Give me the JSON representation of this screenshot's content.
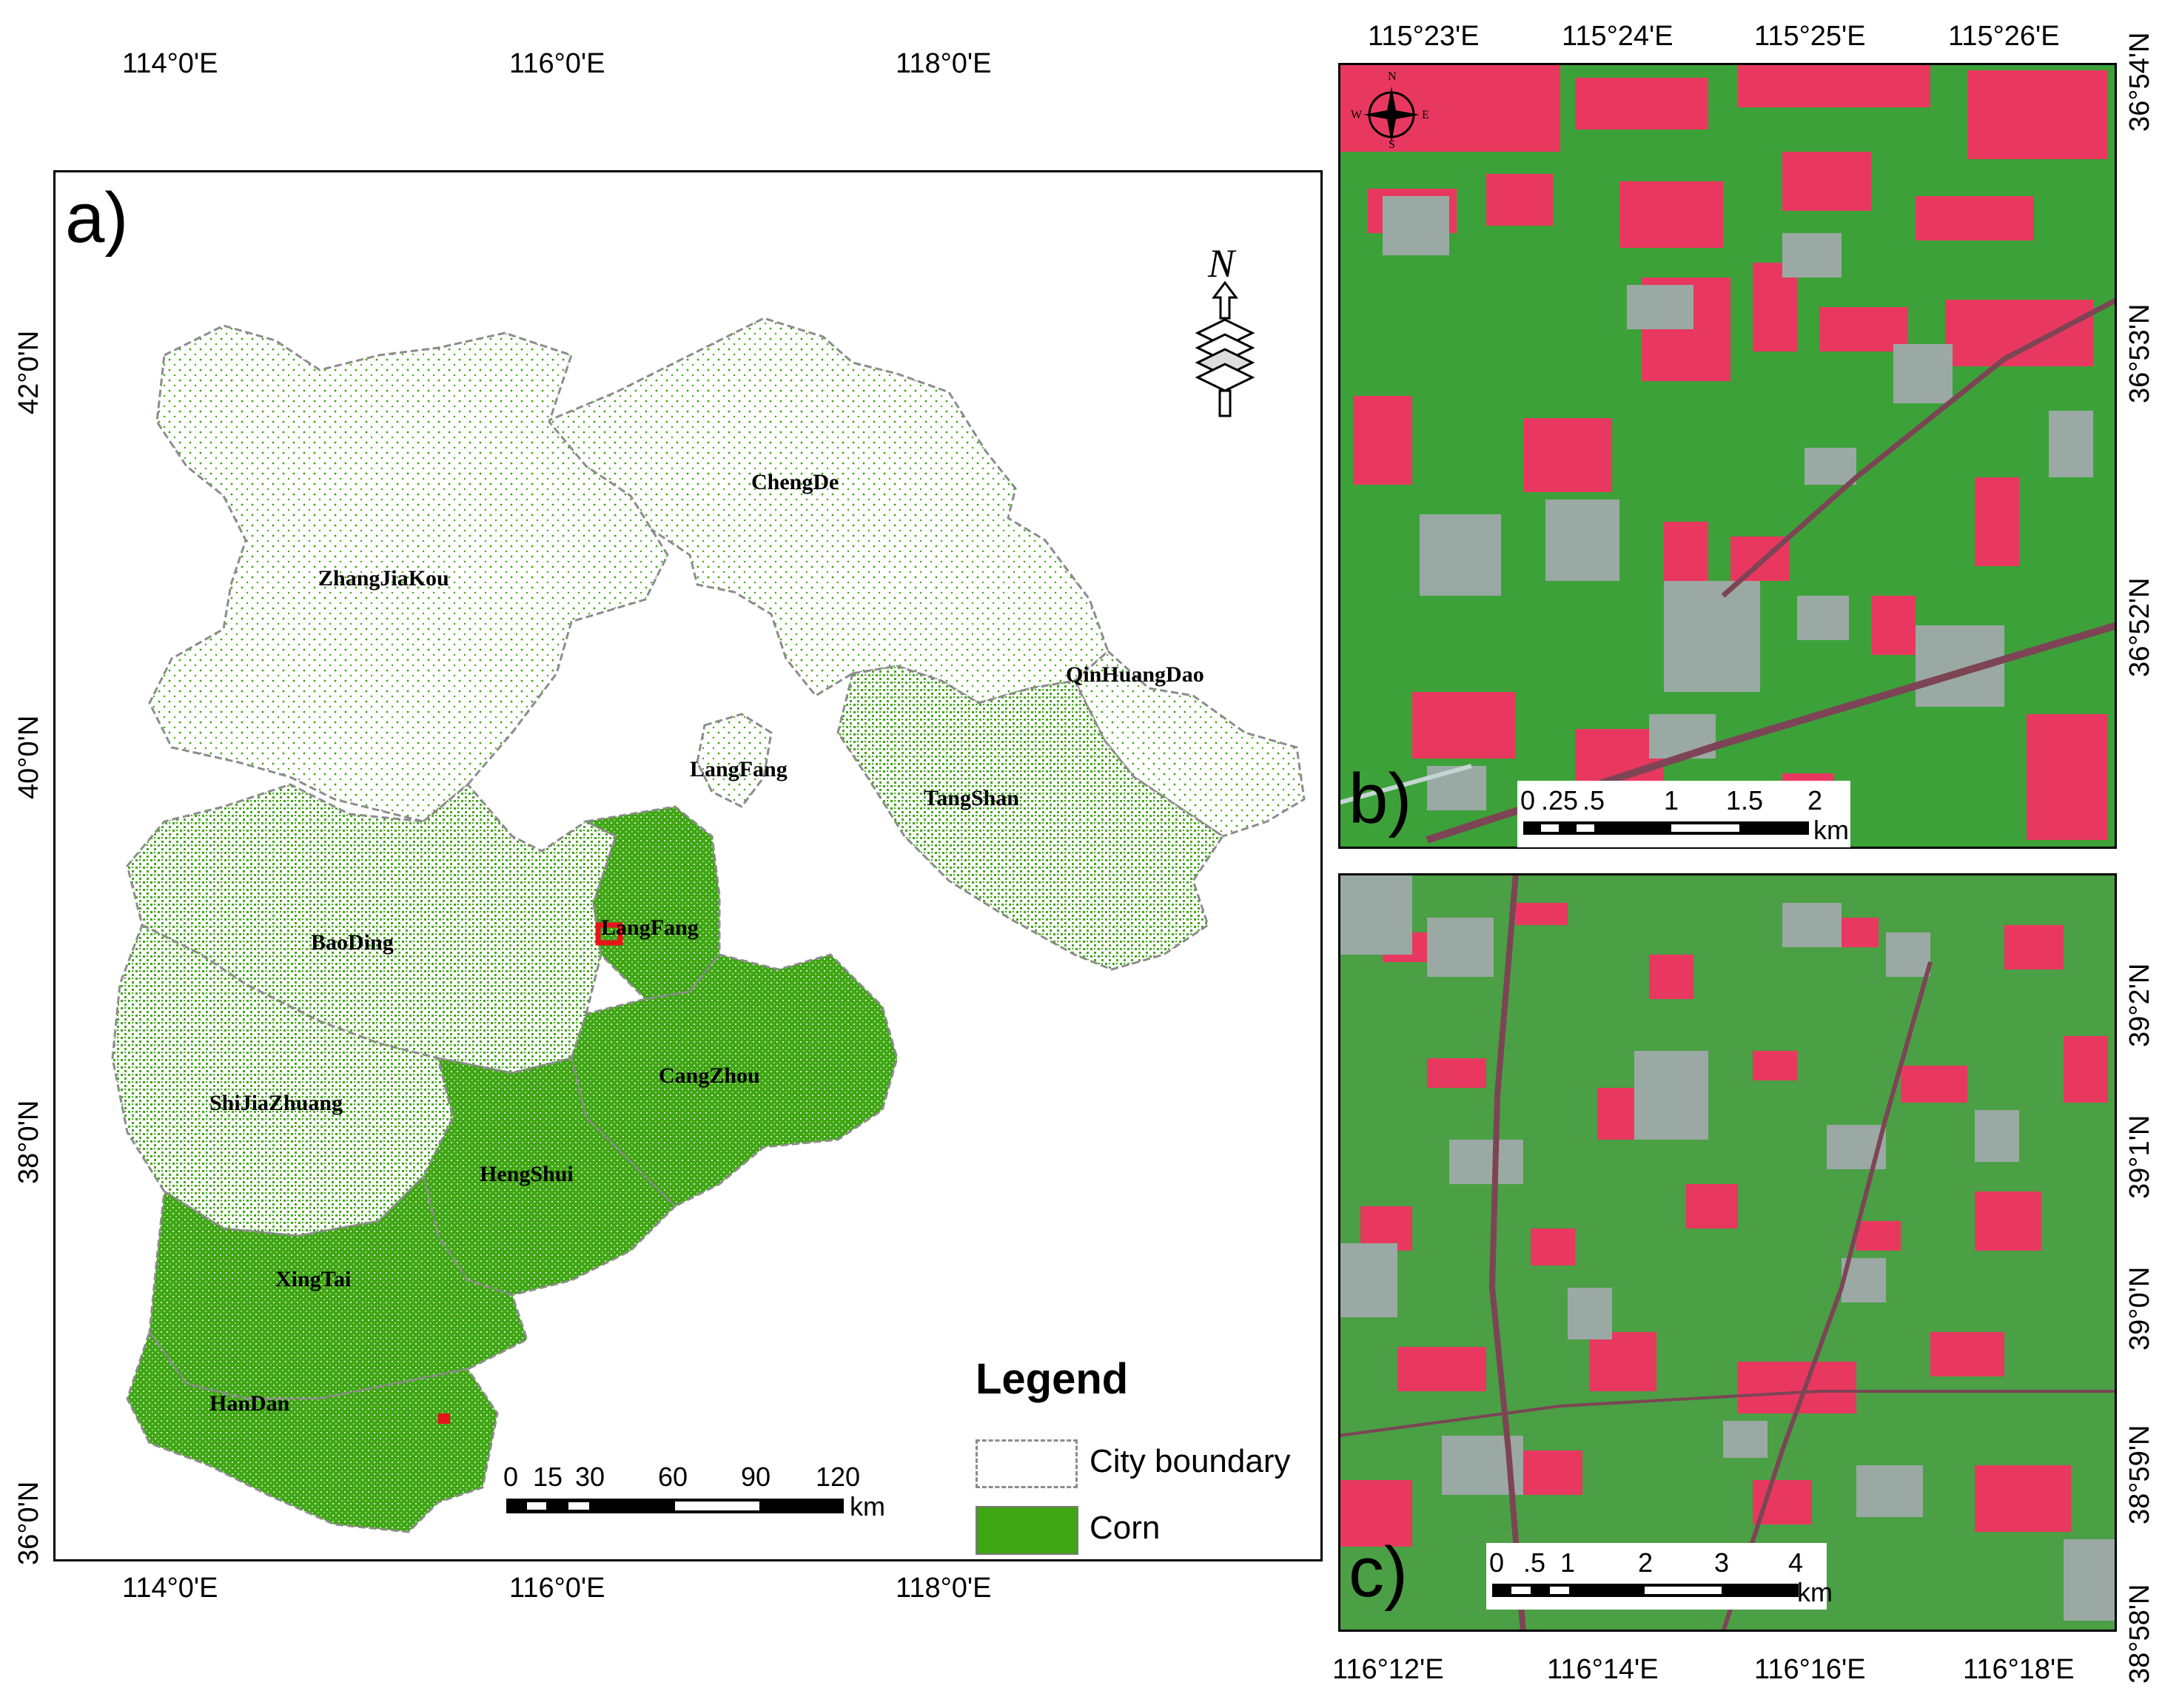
{
  "panel_a": {
    "letter": "a)",
    "lon_labels": [
      "114°0'E",
      "116°0'E",
      "118°0'E"
    ],
    "lat_labels": [
      "42°0'N",
      "40°0'N",
      "38°0'N",
      "36°0'N"
    ],
    "cities": [
      {
        "name": "ChengDe"
      },
      {
        "name": "ZhangJiaKou"
      },
      {
        "name": "QinHuangDao"
      },
      {
        "name": "LangFang"
      },
      {
        "name": "TangShan"
      },
      {
        "name": "LangFang"
      },
      {
        "name": "BaoDing"
      },
      {
        "name": "CangZhou"
      },
      {
        "name": "ShiJiaZhuang"
      },
      {
        "name": "HengShui"
      },
      {
        "name": "XingTai"
      },
      {
        "name": "HanDan"
      }
    ],
    "north_arrow_letter": "N",
    "scalebar": {
      "ticks": [
        "0",
        "15",
        "30",
        "60",
        "90",
        "120"
      ],
      "unit": "km"
    },
    "legend": {
      "title": "Legend",
      "items": [
        {
          "label": "City boundary",
          "color": "#ffffff"
        },
        {
          "label": "Corn",
          "color": "#3fa614"
        }
      ]
    },
    "colors": {
      "corn": "#3fa614",
      "boundary": "#8c8c8c",
      "study_area_marker": "#e8141b"
    }
  },
  "panel_b": {
    "letter": "b)",
    "lon_labels": [
      "115°23'E",
      "115°24'E",
      "115°25'E",
      "115°26'E"
    ],
    "lat_labels": [
      "36°54'N",
      "36°53'N",
      "36°52'N"
    ],
    "scalebar": {
      "ticks": [
        "0",
        ".25",
        ".5",
        "1",
        "1.5",
        "2"
      ],
      "unit": "km"
    },
    "compass_letters": [
      "N",
      "E",
      "S",
      "W"
    ]
  },
  "panel_c": {
    "letter": "c)",
    "lon_labels": [
      "116°12'E",
      "116°14'E",
      "116°16'E",
      "116°18'E"
    ],
    "lat_labels": [
      "39°2'N",
      "39°1'N",
      "39°0'N",
      "38°59'N",
      "38°58'N"
    ],
    "scalebar": {
      "ticks": [
        "0",
        ".5",
        "1",
        "2",
        "3",
        "4"
      ],
      "unit": "km"
    }
  },
  "imagery_colors": {
    "vegetation": "#3da13a",
    "bare_soil": "#e8385f",
    "settlement": "#9aa9a3",
    "road": "#7d4456"
  }
}
